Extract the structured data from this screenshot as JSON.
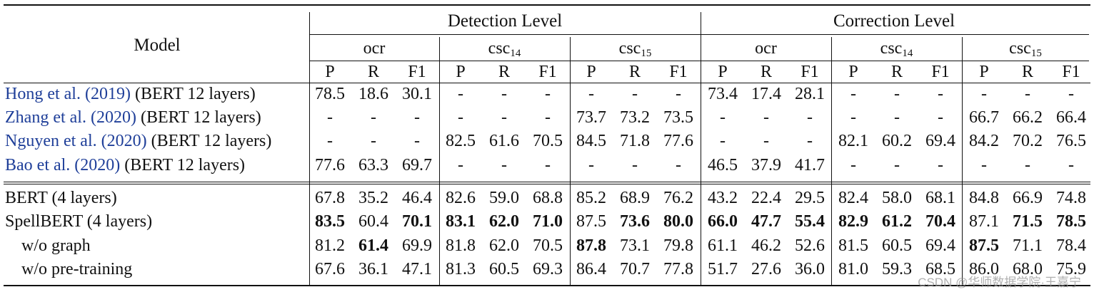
{
  "header": {
    "model": "Model",
    "levels": [
      "Detection Level",
      "Correction Level"
    ],
    "datasets": [
      {
        "base": "ocr",
        "sub": ""
      },
      {
        "base": "csc",
        "sub": "14"
      },
      {
        "base": "csc",
        "sub": "15"
      },
      {
        "base": "ocr",
        "sub": ""
      },
      {
        "base": "csc",
        "sub": "14"
      },
      {
        "base": "csc",
        "sub": "15"
      }
    ],
    "metrics": [
      "P",
      "R",
      "F1"
    ]
  },
  "rows_top": [
    {
      "pre": "",
      "cite": "Hong et al. (",
      "year": "2019",
      "post": ") (BERT 12 layers)",
      "values": [
        "78.5",
        "18.6",
        "30.1",
        "-",
        "-",
        "-",
        "-",
        "-",
        "-",
        "73.4",
        "17.4",
        "28.1",
        "-",
        "-",
        "-",
        "-",
        "-",
        "-"
      ],
      "bold": []
    },
    {
      "pre": "",
      "cite": "Zhang et al. (",
      "year": "2020",
      "post": ") (BERT 12 layers)",
      "values": [
        "-",
        "-",
        "-",
        "-",
        "-",
        "-",
        "73.7",
        "73.2",
        "73.5",
        "-",
        "-",
        "-",
        "-",
        "-",
        "-",
        "66.7",
        "66.2",
        "66.4"
      ],
      "bold": []
    },
    {
      "pre": "",
      "cite": "Nguyen et al. (",
      "year": "2020",
      "post": ") (BERT 12 layers)",
      "values": [
        "-",
        "-",
        "-",
        "82.5",
        "61.6",
        "70.5",
        "84.5",
        "71.8",
        "77.6",
        "-",
        "-",
        "-",
        "82.1",
        "60.2",
        "69.4",
        "84.2",
        "70.2",
        "76.5"
      ],
      "bold": []
    },
    {
      "pre": "",
      "cite": "Bao et al. (",
      "year": "2020",
      "post": ") (BERT 12 layers)",
      "values": [
        "77.6",
        "63.3",
        "69.7",
        "-",
        "-",
        "-",
        "-",
        "-",
        "-",
        "46.5",
        "37.9",
        "41.7",
        "-",
        "-",
        "-",
        "-",
        "-",
        "-"
      ],
      "bold": []
    }
  ],
  "rows_bottom": [
    {
      "label": "BERT (4 layers)",
      "indent": false,
      "values": [
        "67.8",
        "35.2",
        "46.4",
        "82.6",
        "59.0",
        "68.8",
        "85.2",
        "68.9",
        "76.2",
        "43.2",
        "22.4",
        "29.5",
        "82.4",
        "58.0",
        "68.1",
        "84.8",
        "66.9",
        "74.8"
      ],
      "bold": []
    },
    {
      "label": "SpellBERT (4 layers)",
      "indent": false,
      "values": [
        "83.5",
        "60.4",
        "70.1",
        "83.1",
        "62.0",
        "71.0",
        "87.5",
        "73.6",
        "80.0",
        "66.0",
        "47.7",
        "55.4",
        "82.9",
        "61.2",
        "70.4",
        "87.1",
        "71.5",
        "78.5"
      ],
      "bold": [
        0,
        2,
        3,
        4,
        5,
        7,
        8,
        9,
        10,
        11,
        12,
        13,
        14,
        16,
        17
      ]
    },
    {
      "label": "w/o graph",
      "indent": true,
      "values": [
        "81.2",
        "61.4",
        "69.9",
        "81.8",
        "62.0",
        "70.5",
        "87.8",
        "73.1",
        "79.8",
        "61.1",
        "46.2",
        "52.6",
        "81.5",
        "60.5",
        "69.4",
        "87.5",
        "71.1",
        "78.4"
      ],
      "bold": [
        1,
        6,
        15
      ]
    },
    {
      "label": "w/o pre-training",
      "indent": true,
      "values": [
        "67.6",
        "36.1",
        "47.1",
        "81.3",
        "60.5",
        "69.3",
        "86.4",
        "70.7",
        "77.8",
        "51.7",
        "27.6",
        "36.0",
        "81.0",
        "59.3",
        "68.5",
        "86.0",
        "68.0",
        "75.9"
      ],
      "bold": []
    }
  ],
  "watermark": "CSDN @华师数据学院·王嘉宁"
}
